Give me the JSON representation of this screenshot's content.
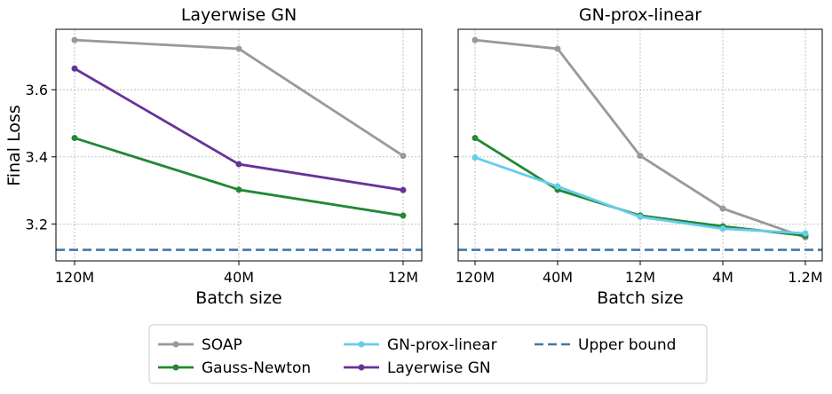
{
  "colors": {
    "soap": "#999999",
    "gauss_newton": "#228833",
    "gn_prox_linear": "#66ccee",
    "layerwise_gn": "#663399",
    "upper_bound": "#4477aa"
  },
  "chart_data": [
    {
      "type": "line",
      "title": "Layerwise GN",
      "xlabel": "Batch size",
      "ylabel": "Final Loss",
      "categories": [
        "120M",
        "40M",
        "12M"
      ],
      "ylim": [
        3.09,
        3.78
      ],
      "yticks": [
        "3.2",
        "3.4",
        "3.6"
      ],
      "grid": true,
      "reference_line": {
        "name": "Upper bound",
        "value": 3.123
      },
      "series": [
        {
          "name": "SOAP",
          "color_key": "soap",
          "values": [
            3.748,
            3.722,
            3.403
          ]
        },
        {
          "name": "Gauss-Newton",
          "color_key": "gauss_newton",
          "values": [
            3.456,
            3.302,
            3.225
          ]
        },
        {
          "name": "Layerwise GN",
          "color_key": "layerwise_gn",
          "values": [
            3.663,
            3.378,
            3.301
          ]
        }
      ]
    },
    {
      "type": "line",
      "title": "GN-prox-linear",
      "xlabel": "Batch size",
      "ylabel": "",
      "categories": [
        "120M",
        "40M",
        "12M",
        "4M",
        "1.2M"
      ],
      "ylim": [
        3.09,
        3.78
      ],
      "yticks": [
        "3.2",
        "3.4",
        "3.6"
      ],
      "grid": true,
      "reference_line": {
        "name": "Upper bound",
        "value": 3.123
      },
      "series": [
        {
          "name": "SOAP",
          "color_key": "soap",
          "values": [
            3.748,
            3.722,
            3.403,
            3.246,
            3.16
          ]
        },
        {
          "name": "Gauss-Newton",
          "color_key": "gauss_newton",
          "values": [
            3.456,
            3.302,
            3.225,
            3.193,
            3.165
          ]
        },
        {
          "name": "GN-prox-linear",
          "color_key": "gn_prox_linear",
          "values": [
            3.398,
            3.312,
            3.221,
            3.186,
            3.172
          ]
        }
      ]
    }
  ],
  "legend": {
    "placement": "bottom-center",
    "items": [
      {
        "label": "SOAP",
        "color_key": "soap",
        "style": "line-marker"
      },
      {
        "label": "Gauss-Newton",
        "color_key": "gauss_newton",
        "style": "line-marker"
      },
      {
        "label": "GN-prox-linear",
        "color_key": "gn_prox_linear",
        "style": "line-marker"
      },
      {
        "label": "Layerwise GN",
        "color_key": "layerwise_gn",
        "style": "line-marker"
      },
      {
        "label": "Upper bound",
        "color_key": "upper_bound",
        "style": "dashed"
      }
    ]
  }
}
